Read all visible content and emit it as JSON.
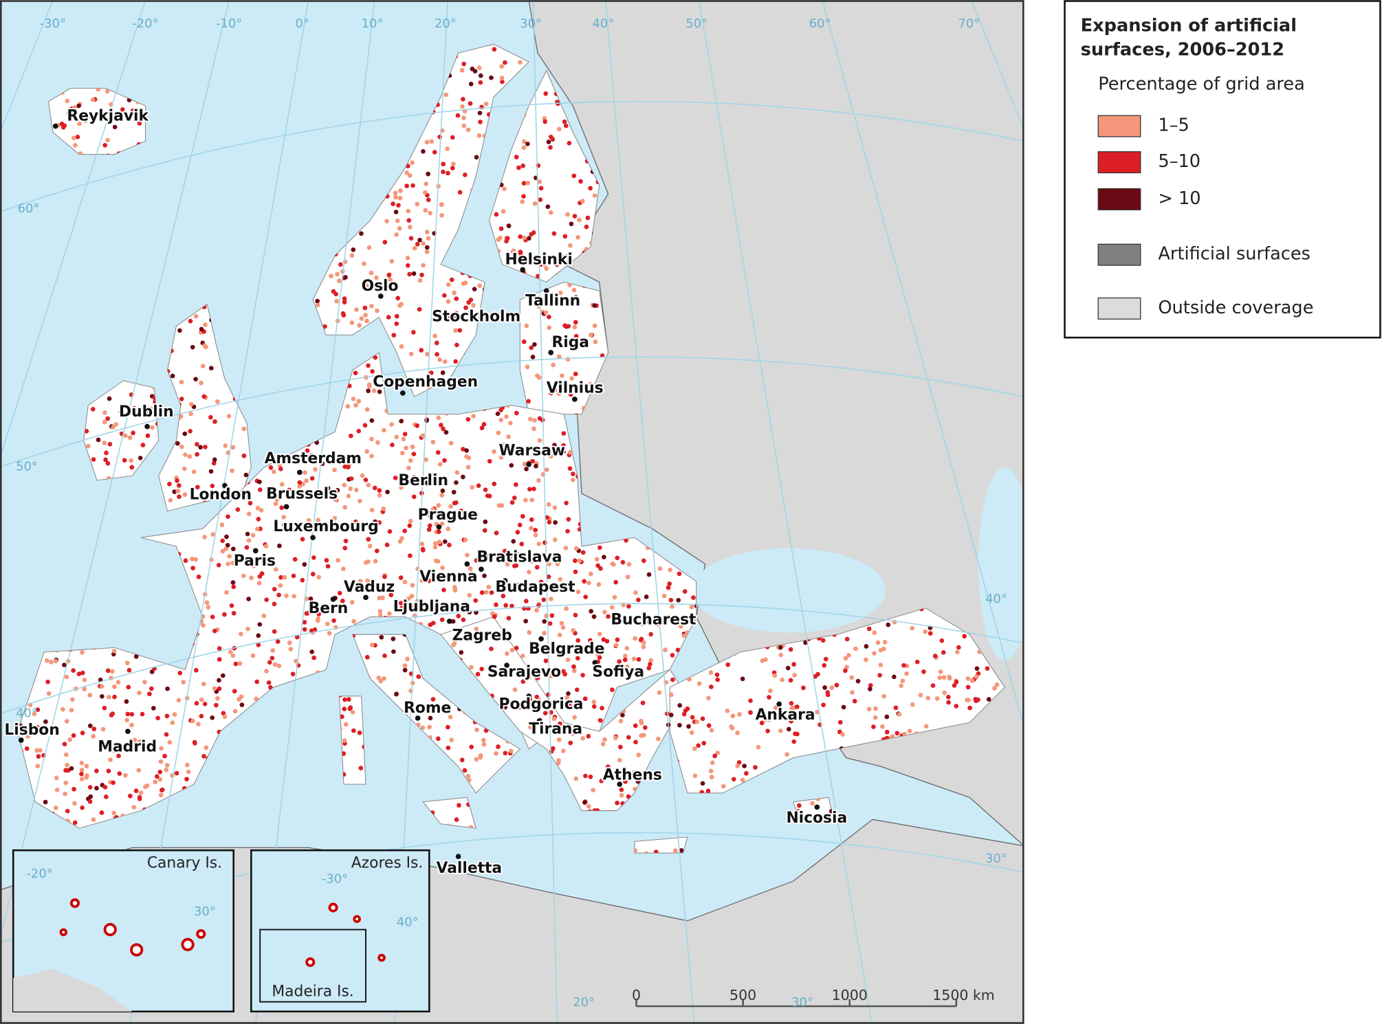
{
  "legend": {
    "title_lines": [
      "Expansion of artificial",
      "surfaces, 2006–2012"
    ],
    "subtitle": "Percentage of grid area",
    "items": [
      {
        "label": "1–5",
        "color": "#f4977a"
      },
      {
        "label": "5–10",
        "color": "#dc1f26"
      },
      {
        "label": "> 10",
        "color": "#6b0a14"
      },
      {
        "label": "Artificial surfaces",
        "color": "#808080"
      },
      {
        "label": "Outside coverage",
        "color": "#dcdcdc"
      }
    ]
  },
  "cities": [
    "Reykjavik",
    "Dublin",
    "London",
    "Amsterdam",
    "Brussels",
    "Luxembourg",
    "Paris",
    "Bern",
    "Vaduz",
    "Oslo",
    "Stockholm",
    "Copenhagen",
    "Helsinki",
    "Tallinn",
    "Riga",
    "Vilnius",
    "Warsaw",
    "Berlin",
    "Prague",
    "Bratislava",
    "Vienna",
    "Budapest",
    "Ljubljana",
    "Zagreb",
    "Belgrade",
    "Bucharest",
    "Sarajevo",
    "Sofiya",
    "Podgorica",
    "Tirana",
    "Rome",
    "Athens",
    "Ankara",
    "Nicosia",
    "Madrid",
    "Lisbon",
    "Valletta"
  ],
  "graticule_labels": [
    "-30°",
    "-20°",
    "-10°",
    "0°",
    "10°",
    "20°",
    "30°",
    "40°",
    "50°",
    "60°",
    "70°",
    "60°",
    "50°",
    "40°",
    "40°",
    "30°",
    "20°",
    "30°",
    "-20°",
    "30°",
    "-30°",
    "40°"
  ],
  "insets": [
    "Canary Is.",
    "Azores Is.",
    "Madeira Is."
  ],
  "scale_bar": [
    "0",
    "500",
    "1000",
    "1500 km"
  ]
}
